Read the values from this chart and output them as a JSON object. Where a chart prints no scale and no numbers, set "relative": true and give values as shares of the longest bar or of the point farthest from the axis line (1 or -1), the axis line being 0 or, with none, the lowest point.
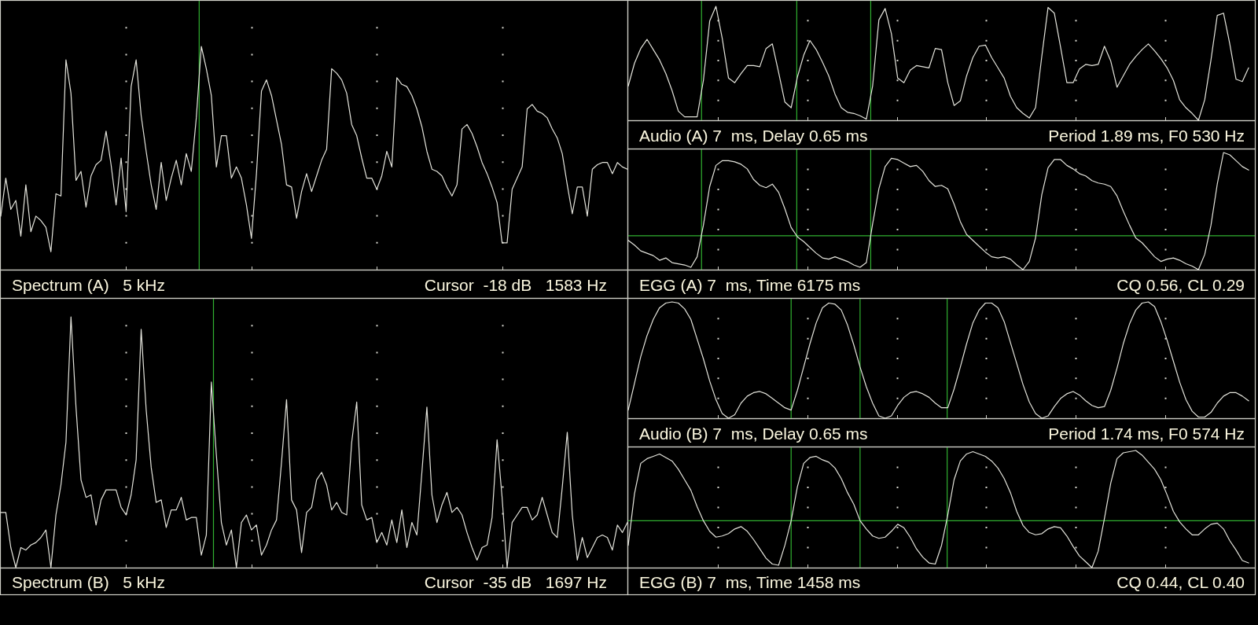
{
  "chart_data": [
    {
      "type": "line",
      "title": "Spectrum (A)   5 kHz",
      "annotations": [
        "Cursor  -18 dB   1583 Hz"
      ],
      "relative": true,
      "grid": "x",
      "categories": [
        null,
        null,
        null,
        null,
        null,
        null,
        null,
        null,
        null,
        null,
        null,
        null,
        null,
        null,
        null,
        null,
        null,
        null,
        null,
        null,
        null,
        null,
        null,
        null,
        null,
        null,
        null,
        null,
        null,
        null,
        null,
        null,
        null,
        null,
        null,
        null,
        null,
        null,
        null,
        null,
        null,
        null,
        null,
        null,
        null,
        null,
        null,
        null,
        null,
        null,
        null,
        null,
        null,
        null,
        null,
        null,
        null,
        null,
        null,
        null,
        null,
        null,
        null,
        null,
        null,
        null,
        null,
        null,
        null,
        null,
        null,
        null,
        null,
        null,
        null,
        null,
        null,
        null,
        null,
        null,
        null,
        null,
        null,
        null,
        null,
        null,
        null,
        null,
        null,
        null,
        null,
        null,
        null,
        null,
        null,
        null,
        null,
        null,
        null,
        null,
        null,
        null,
        null,
        null,
        null,
        null,
        null,
        null,
        null,
        null,
        null,
        null,
        null,
        null,
        null,
        null,
        null,
        null,
        null,
        null,
        null,
        null,
        null,
        null,
        null,
        null
      ],
      "series": [
        {
          "color": "#e4e4dc",
          "values": [
            0.24,
            0.41,
            0.27,
            0.31,
            0.15,
            0.38,
            0.17,
            0.24,
            0.22,
            0.19,
            0.08,
            0.34,
            0.33,
            0.94,
            0.79,
            0.4,
            0.44,
            0.28,
            0.42,
            0.47,
            0.49,
            0.62,
            0.47,
            0.29,
            0.5,
            0.26,
            0.82,
            0.94,
            0.69,
            0.53,
            0.38,
            0.27,
            0.48,
            0.31,
            0.41,
            0.49,
            0.38,
            0.52,
            0.44,
            0.68,
            1,
            0.9,
            0.78,
            0.46,
            0.6,
            0.6,
            0.41,
            0.46,
            0.41,
            0.29,
            0.14,
            0.43,
            0.8,
            0.85,
            0.78,
            0.67,
            0.56,
            0.38,
            0.37,
            0.23,
            0.35,
            0.43,
            0.35,
            0.42,
            0.49,
            0.54,
            0.9,
            0.88,
            0.85,
            0.79,
            0.65,
            0.6,
            0.5,
            0.41,
            0.41,
            0.36,
            0.42,
            0.53,
            0.46,
            0.86,
            0.83,
            0.82,
            0.78,
            0.72,
            0.64,
            0.53,
            0.45,
            0.44,
            0.42,
            0.37,
            0.33,
            0.38,
            0.63,
            0.65,
            0.61,
            0.55,
            0.48,
            0.43,
            0.37,
            0.3,
            0.12,
            0.12,
            0.36,
            0.41,
            0.46,
            0.72,
            0.74,
            0.71,
            0.7,
            0.68,
            0.63,
            0.59,
            0.52,
            0.38,
            0.25,
            0.37,
            0.37,
            0.24,
            0.45,
            0.47,
            0.48,
            0.48,
            0.43,
            0.48,
            0.46,
            0.45
          ]
        }
      ]
    },
    {
      "type": "line",
      "title": "Audio (A) 7  ms, Delay 0.65 ms",
      "annotations": [
        "Period 1.89 ms, F0 530 Hz"
      ],
      "relative": true,
      "grid": "x",
      "categories": [
        null,
        null,
        null,
        null,
        null,
        null,
        null,
        null,
        null,
        null,
        null,
        null,
        null,
        null,
        null,
        null,
        null,
        null,
        null,
        null,
        null,
        null,
        null,
        null,
        null,
        null,
        null,
        null,
        null,
        null,
        null,
        null,
        null,
        null,
        null,
        null,
        null,
        null,
        null,
        null,
        null,
        null,
        null,
        null,
        null,
        null,
        null,
        null,
        null,
        null,
        null,
        null,
        null,
        null,
        null,
        null,
        null,
        null,
        null,
        null,
        null,
        null,
        null,
        null,
        null,
        null,
        null,
        null,
        null,
        null,
        null,
        null,
        null,
        null,
        null,
        null,
        null,
        null,
        null,
        null,
        null,
        null,
        null,
        null,
        null,
        null,
        null,
        null,
        null,
        null,
        null,
        null,
        null,
        null,
        null,
        null,
        null,
        null,
        null,
        null,
        null
      ],
      "series": [
        {
          "color": "#e4e4dc",
          "values": [
            0.3,
            0.5,
            0.63,
            0.71,
            0.62,
            0.53,
            0.41,
            0.26,
            0.08,
            0.03,
            0.03,
            0.03,
            0.35,
            0.87,
            1,
            0.72,
            0.37,
            0.33,
            0.41,
            0.48,
            0.48,
            0.47,
            0.63,
            0.67,
            0.42,
            0.16,
            0.11,
            0.38,
            0.57,
            0.7,
            0.62,
            0.51,
            0.39,
            0.23,
            0.11,
            0.07,
            0.06,
            0.04,
            0.01,
            0.3,
            0.88,
            0.98,
            0.76,
            0.37,
            0.33,
            0.44,
            0.48,
            0.47,
            0.46,
            0.63,
            0.62,
            0.33,
            0.13,
            0.17,
            0.39,
            0.55,
            0.65,
            0.66,
            0.55,
            0.46,
            0.37,
            0.21,
            0.11,
            0.06,
            0.02,
            0.11,
            0.56,
            0.99,
            0.94,
            0.64,
            0.33,
            0.33,
            0.45,
            0.49,
            0.48,
            0.49,
            0.65,
            0.52,
            0.29,
            0.39,
            0.49,
            0.56,
            0.62,
            0.67,
            0.61,
            0.54,
            0.46,
            0.35,
            0.18,
            0.11,
            0.06,
            0,
            0.18,
            0.53,
            0.92,
            0.94,
            0.67,
            0.36,
            0.34,
            0.46,
            null
          ]
        }
      ]
    },
    {
      "type": "line",
      "title": "EGG (A) 7  ms, Time 6175 ms",
      "annotations": [
        "CQ 0.56, CL 0.29"
      ],
      "relative": true,
      "grid": "x",
      "ref_lines": [
        {
          "axis": "y",
          "value": 0.29,
          "color": "#30b030"
        }
      ],
      "categories": [
        null,
        null,
        null,
        null,
        null,
        null,
        null,
        null,
        null,
        null,
        null,
        null,
        null,
        null,
        null,
        null,
        null,
        null,
        null,
        null,
        null,
        null,
        null,
        null,
        null,
        null,
        null,
        null,
        null,
        null,
        null,
        null,
        null,
        null,
        null,
        null,
        null,
        null,
        null,
        null,
        null,
        null,
        null,
        null,
        null,
        null,
        null,
        null,
        null,
        null,
        null,
        null,
        null,
        null,
        null,
        null,
        null,
        null,
        null,
        null,
        null,
        null,
        null,
        null,
        null,
        null,
        null,
        null,
        null,
        null,
        null,
        null,
        null,
        null,
        null,
        null,
        null,
        null,
        null,
        null,
        null,
        null,
        null,
        null,
        null,
        null,
        null,
        null,
        null,
        null,
        null,
        null,
        null,
        null,
        null,
        null,
        null,
        null,
        null,
        null,
        null
      ],
      "series": [
        {
          "color": "#e4e4dc",
          "values": [
            0.25,
            0.21,
            0.16,
            0.14,
            0.12,
            0.08,
            0.1,
            0.06,
            0.05,
            0.04,
            0.02,
            0.11,
            0.38,
            0.71,
            0.89,
            0.93,
            0.93,
            0.92,
            0.9,
            0.86,
            0.77,
            0.72,
            0.7,
            0.73,
            0.66,
            0.52,
            0.36,
            0.28,
            0.24,
            0.19,
            0.14,
            0.1,
            0.09,
            0.11,
            0.09,
            0.07,
            0.04,
            0.02,
            0.06,
            0.39,
            0.69,
            0.88,
            0.95,
            0.94,
            0.91,
            0.88,
            0.89,
            0.84,
            0.76,
            0.71,
            0.72,
            0.69,
            0.56,
            0.41,
            0.3,
            0.25,
            0.2,
            0.15,
            0.11,
            0.1,
            0.11,
            0.09,
            0.04,
            0,
            0.07,
            0.27,
            0.64,
            0.87,
            0.94,
            0.94,
            0.89,
            0.86,
            0.82,
            0.8,
            0.76,
            0.74,
            0.73,
            0.71,
            0.63,
            0.5,
            0.38,
            0.27,
            0.23,
            0.17,
            0.11,
            0.07,
            0.09,
            0.1,
            0.08,
            0.05,
            0.03,
            0,
            0.13,
            0.38,
            0.73,
            1,
            0.98,
            0.93,
            0.88,
            0.85,
            null
          ]
        }
      ]
    },
    {
      "type": "line",
      "title": "Spectrum (B)   5 kHz",
      "annotations": [
        "Cursor  -35 dB   1697 Hz"
      ],
      "relative": true,
      "grid": "x",
      "categories": [
        null,
        null,
        null,
        null,
        null,
        null,
        null,
        null,
        null,
        null,
        null,
        null,
        null,
        null,
        null,
        null,
        null,
        null,
        null,
        null,
        null,
        null,
        null,
        null,
        null,
        null,
        null,
        null,
        null,
        null,
        null,
        null,
        null,
        null,
        null,
        null,
        null,
        null,
        null,
        null,
        null,
        null,
        null,
        null,
        null,
        null,
        null,
        null,
        null,
        null,
        null,
        null,
        null,
        null,
        null,
        null,
        null,
        null,
        null,
        null,
        null,
        null,
        null,
        null,
        null,
        null,
        null,
        null,
        null,
        null,
        null,
        null,
        null,
        null,
        null,
        null,
        null,
        null,
        null,
        null,
        null,
        null,
        null,
        null,
        null,
        null,
        null,
        null,
        null,
        null,
        null,
        null,
        null,
        null,
        null,
        null,
        null,
        null,
        null,
        null,
        null,
        null,
        null,
        null,
        null,
        null,
        null,
        null,
        null,
        null,
        null,
        null,
        null,
        null,
        null,
        null,
        null,
        null,
        null,
        null,
        null,
        null,
        null,
        null,
        null,
        null
      ],
      "series": [
        {
          "color": "#e4e4dc",
          "values": [
            0.22,
            0.22,
            0.08,
            0,
            0.08,
            0.07,
            0.09,
            0.1,
            0.12,
            0.15,
            0,
            0.21,
            0.33,
            0.5,
            1,
            0.64,
            0.35,
            0.28,
            0.29,
            0.17,
            0.27,
            0.31,
            0.31,
            0.31,
            0.24,
            0.21,
            0.29,
            0.43,
            0.95,
            0.63,
            0.4,
            0.26,
            0.27,
            0.16,
            0.23,
            0.23,
            0.28,
            0.19,
            0.2,
            0.2,
            0.05,
            0.13,
            0.74,
            0.45,
            0.18,
            0.09,
            0.15,
            0,
            0.18,
            0.21,
            0.15,
            0.17,
            0.05,
            0.09,
            0.15,
            0.19,
            0.42,
            0.67,
            0.27,
            0.23,
            0.06,
            0.22,
            0.24,
            0.35,
            0.38,
            0.33,
            0.23,
            0.26,
            0.22,
            0.21,
            0.5,
            0.66,
            0.25,
            0.19,
            0.2,
            0.1,
            0.14,
            0.09,
            0.19,
            0.1,
            0.23,
            0.08,
            0.18,
            0.13,
            0.38,
            0.64,
            0.29,
            0.18,
            0.25,
            0.3,
            0.22,
            0.24,
            0.21,
            0.14,
            0.08,
            0.03,
            0.08,
            0.09,
            0.2,
            0.51,
            0.28,
            0,
            0.18,
            0.21,
            0.24,
            0.24,
            0.19,
            0.21,
            0.28,
            0.21,
            0.14,
            0.12,
            0.32,
            0.54,
            0.21,
            0.03,
            0.12,
            0.04,
            0.08,
            0.12,
            0.13,
            0.12,
            0.07,
            0.17,
            0.14,
            0.18
          ]
        }
      ]
    },
    {
      "type": "line",
      "title": "Audio (B) 7  ms, Delay 0.65 ms",
      "annotations": [
        "Period 1.74 ms, F0 574 Hz"
      ],
      "relative": true,
      "grid": "x",
      "categories": [
        null,
        null,
        null,
        null,
        null,
        null,
        null,
        null,
        null,
        null,
        null,
        null,
        null,
        null,
        null,
        null,
        null,
        null,
        null,
        null,
        null,
        null,
        null,
        null,
        null,
        null,
        null,
        null,
        null,
        null,
        null,
        null,
        null,
        null,
        null,
        null,
        null,
        null,
        null,
        null,
        null,
        null,
        null,
        null,
        null,
        null,
        null,
        null,
        null,
        null,
        null,
        null,
        null,
        null,
        null,
        null,
        null,
        null,
        null,
        null,
        null,
        null,
        null,
        null,
        null,
        null,
        null,
        null,
        null,
        null,
        null,
        null,
        null,
        null,
        null,
        null,
        null,
        null,
        null,
        null,
        null,
        null,
        null,
        null,
        null,
        null,
        null,
        null,
        null,
        null,
        null,
        null,
        null,
        null,
        null,
        null,
        null,
        null,
        null,
        null,
        null
      ],
      "series": [
        {
          "color": "#e4e4dc",
          "values": [
            0.07,
            0.3,
            0.53,
            0.71,
            0.85,
            0.95,
            0.99,
            1,
            0.99,
            0.94,
            0.85,
            0.68,
            0.51,
            0.32,
            0.16,
            0.04,
            0,
            0.03,
            0.13,
            0.19,
            0.22,
            0.23,
            0.21,
            0.17,
            0.13,
            0.09,
            0.07,
            0.24,
            0.44,
            0.64,
            0.82,
            0.95,
            0.99,
            0.98,
            0.93,
            0.8,
            0.63,
            0.44,
            0.27,
            0.13,
            0.02,
            0,
            0.02,
            0.11,
            0.18,
            0.22,
            0.23,
            0.21,
            0.18,
            0.13,
            0.09,
            0.09,
            0.25,
            0.44,
            0.64,
            0.82,
            0.93,
            0.99,
            0.99,
            0.95,
            0.83,
            0.65,
            0.47,
            0.29,
            0.14,
            0.04,
            0,
            0.02,
            0.1,
            0.17,
            0.21,
            0.23,
            0.2,
            0.15,
            0.11,
            0.09,
            0.1,
            0.24,
            0.43,
            0.64,
            0.81,
            0.93,
            0.99,
            1,
            0.96,
            0.83,
            0.67,
            0.49,
            0.31,
            0.16,
            0.06,
            0.01,
            0.01,
            0.05,
            0.13,
            0.19,
            0.22,
            0.22,
            0.19,
            0.15,
            null
          ]
        }
      ]
    },
    {
      "type": "line",
      "title": "EGG (B) 7  ms, Time 1458 ms",
      "annotations": [
        "CQ 0.44, CL 0.40"
      ],
      "relative": true,
      "grid": "x",
      "ref_lines": [
        {
          "axis": "y",
          "value": 0.4,
          "color": "#30b030"
        }
      ],
      "categories": [
        null,
        null,
        null,
        null,
        null,
        null,
        null,
        null,
        null,
        null,
        null,
        null,
        null,
        null,
        null,
        null,
        null,
        null,
        null,
        null,
        null,
        null,
        null,
        null,
        null,
        null,
        null,
        null,
        null,
        null,
        null,
        null,
        null,
        null,
        null,
        null,
        null,
        null,
        null,
        null,
        null,
        null,
        null,
        null,
        null,
        null,
        null,
        null,
        null,
        null,
        null,
        null,
        null,
        null,
        null,
        null,
        null,
        null,
        null,
        null,
        null,
        null,
        null,
        null,
        null,
        null,
        null,
        null,
        null,
        null,
        null,
        null,
        null,
        null,
        null,
        null,
        null,
        null,
        null,
        null,
        null,
        null,
        null,
        null,
        null,
        null,
        null,
        null,
        null,
        null,
        null,
        null,
        null,
        null,
        null,
        null,
        null,
        null,
        null,
        null,
        null
      ],
      "series": [
        {
          "color": "#e4e4dc",
          "values": [
            0.19,
            0.63,
            0.89,
            0.93,
            0.95,
            0.97,
            0.94,
            0.91,
            0.84,
            0.75,
            0.66,
            0.52,
            0.4,
            0.31,
            0.26,
            0.27,
            0.29,
            0.33,
            0.35,
            0.31,
            0.24,
            0.16,
            0.08,
            0.03,
            0.02,
            0.19,
            0.4,
            0.69,
            0.89,
            0.94,
            0.95,
            0.92,
            0.9,
            0.85,
            0.76,
            0.64,
            0.54,
            0.4,
            0.33,
            0.27,
            0.25,
            0.26,
            0.31,
            0.37,
            0.34,
            0.26,
            0.16,
            0.09,
            0.04,
            0.03,
            0.19,
            0.45,
            0.75,
            0.91,
            0.97,
            0.99,
            0.97,
            0.95,
            0.91,
            0.85,
            0.76,
            0.64,
            0.48,
            0.36,
            0.3,
            0.28,
            0.29,
            0.33,
            0.35,
            0.34,
            0.27,
            0.18,
            0.1,
            0.05,
            0,
            0.14,
            0.42,
            0.72,
            0.93,
            0.98,
            0.99,
            1,
            0.96,
            0.9,
            0.84,
            0.75,
            0.62,
            0.48,
            0.39,
            0.33,
            0.28,
            0.28,
            0.33,
            0.37,
            0.38,
            0.33,
            0.23,
            0.15,
            0.06,
            0.04,
            null
          ]
        }
      ]
    }
  ]
}
